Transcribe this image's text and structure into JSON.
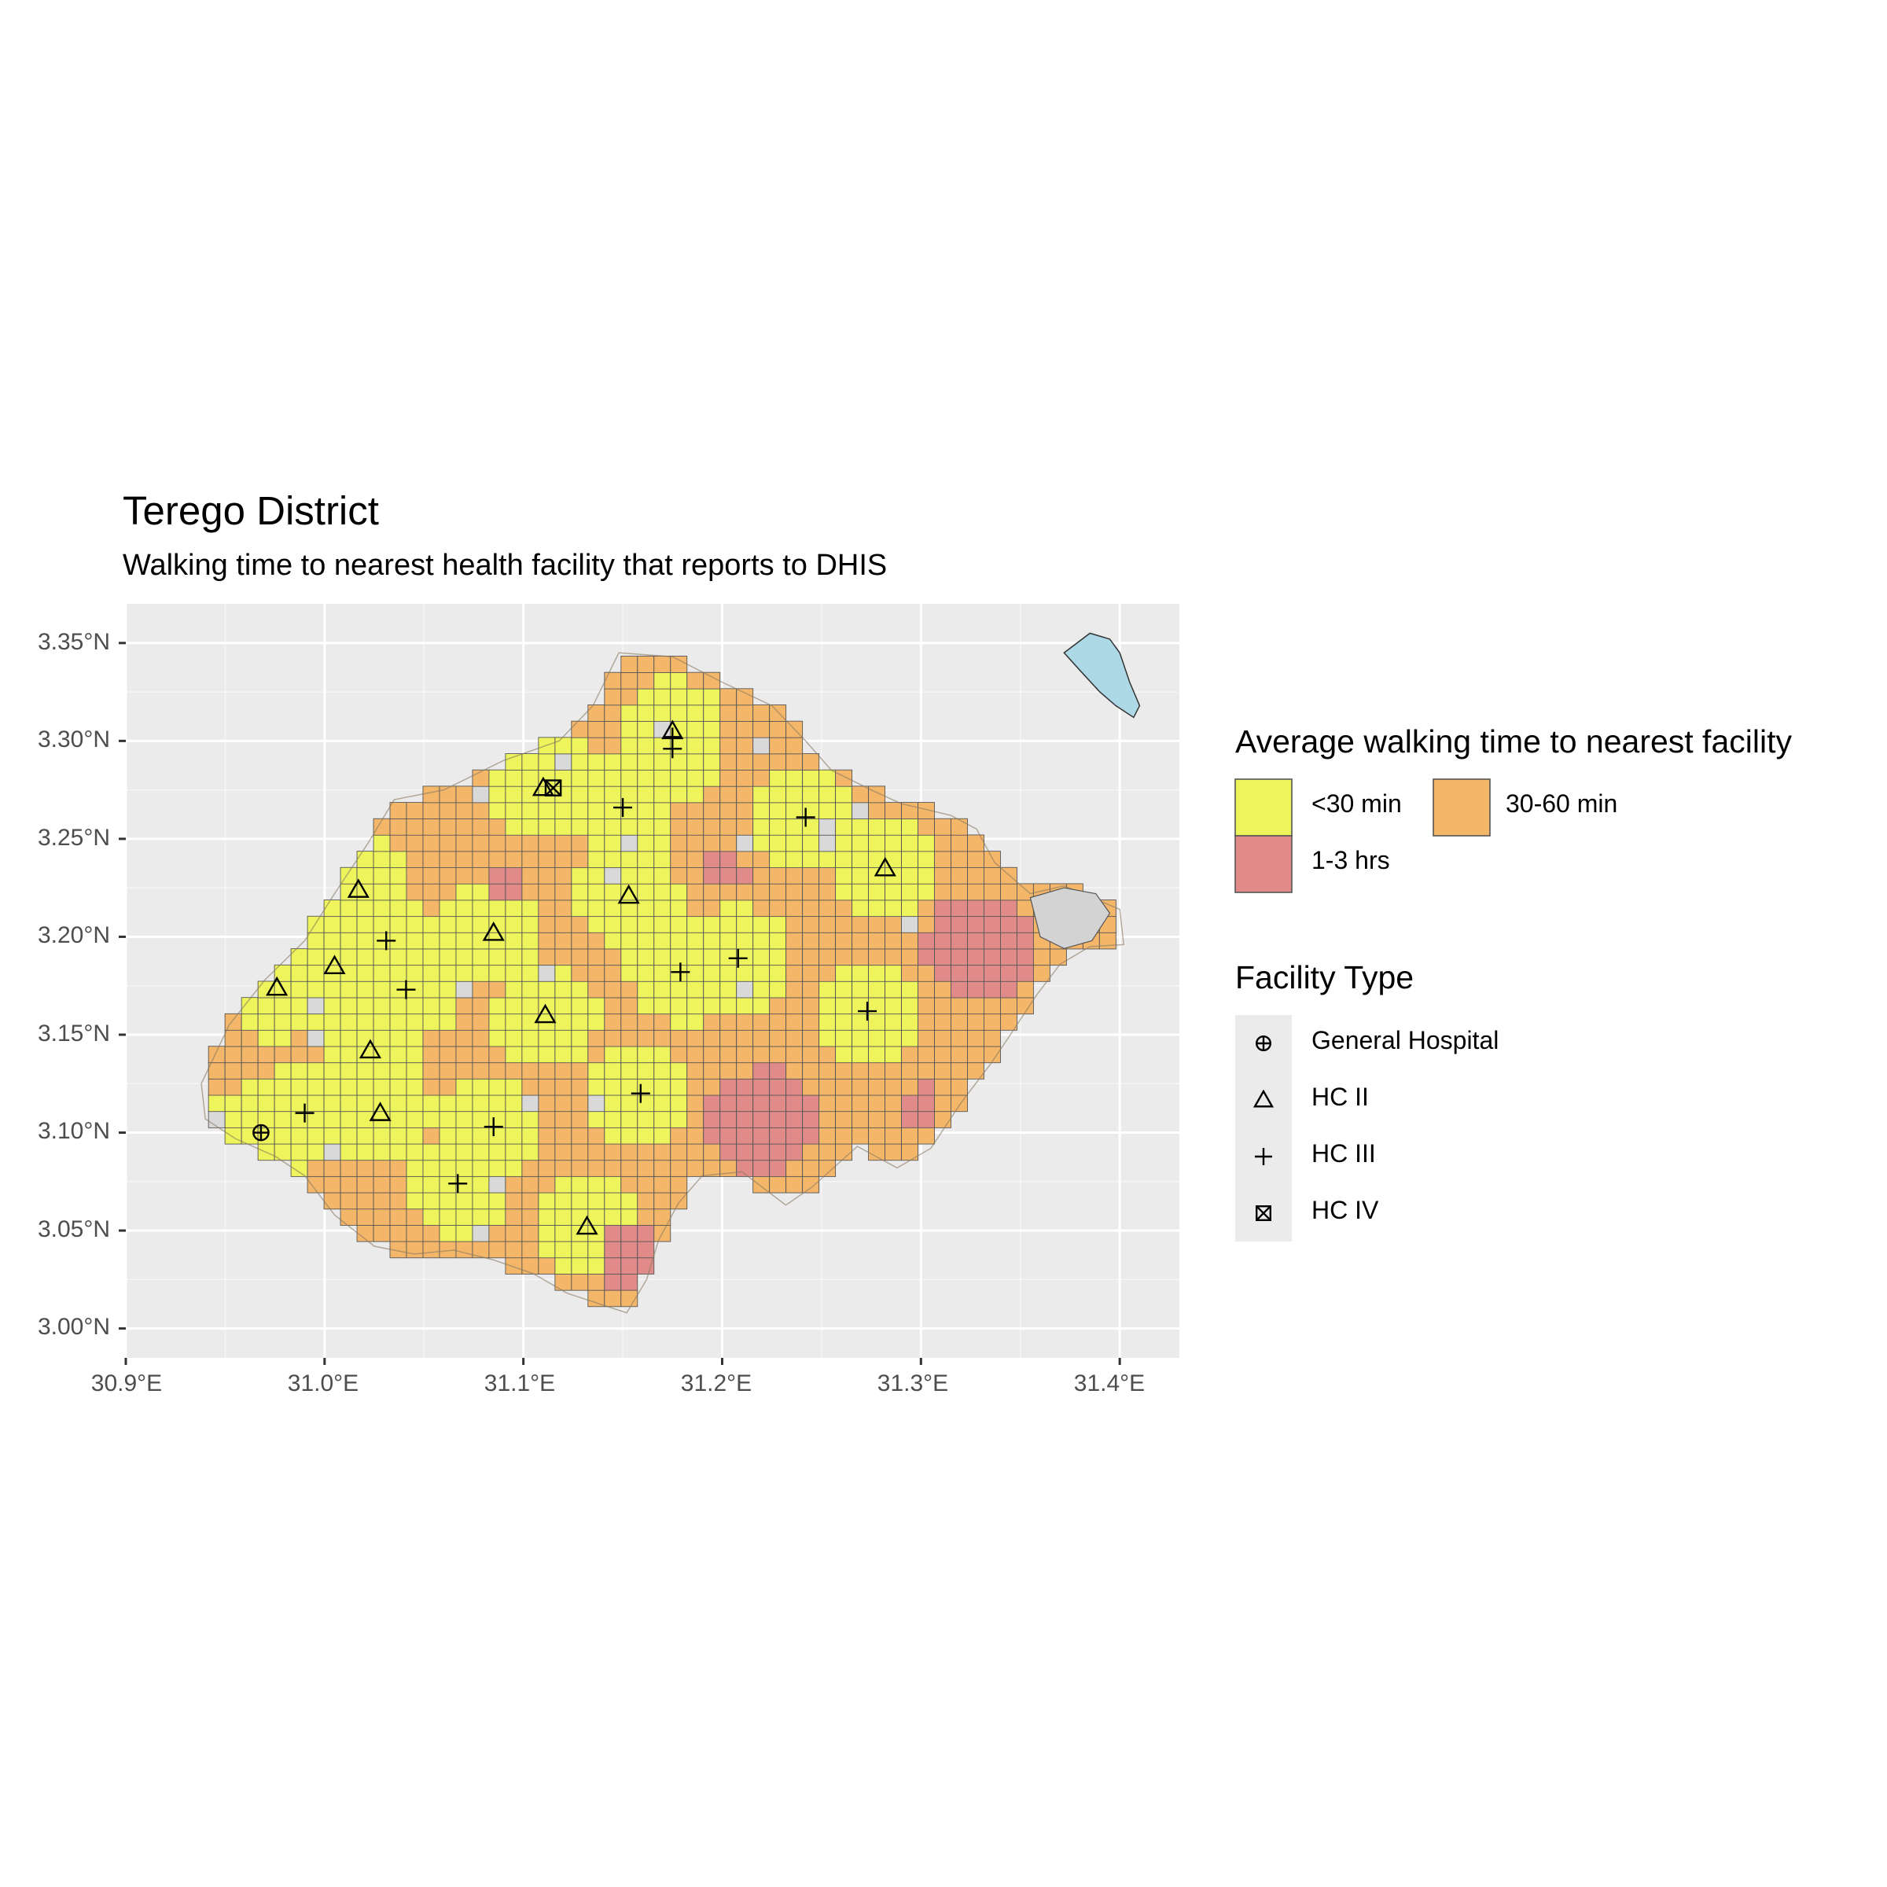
{
  "title": "Terego District",
  "subtitle": "Walking time to nearest health facility that reports to DHIS",
  "axes": {
    "y_ticks": [
      "3.35°N",
      "3.30°N",
      "3.25°N",
      "3.20°N",
      "3.15°N",
      "3.10°N",
      "3.05°N",
      "3.00°N"
    ],
    "x_ticks": [
      "30.9°E",
      "31.0°E",
      "31.1°E",
      "31.2°E",
      "31.3°E",
      "31.4°E"
    ],
    "x_range": [
      30.9,
      31.43
    ],
    "y_range": [
      2.985,
      3.37
    ]
  },
  "walking_legend": {
    "title": "Average walking time to nearest facility",
    "items": [
      {
        "label": "<30 min",
        "color": "#EEF45B"
      },
      {
        "label": "30-60 min",
        "color": "#F4B76A"
      },
      {
        "label": "1-3 hrs",
        "color": "#E08A8A"
      }
    ]
  },
  "facility_legend": {
    "title": "Facility Type",
    "items": [
      {
        "label": "General Hospital",
        "symbol": "circle-plus-icon"
      },
      {
        "label": "HC II",
        "symbol": "triangle-icon"
      },
      {
        "label": "HC III",
        "symbol": "plus-icon"
      },
      {
        "label": "HC IV",
        "symbol": "square-x-icon"
      }
    ]
  },
  "colors": {
    "panel": "#EBEBEB",
    "gridline": "#FFFFFF",
    "lake": "#ADD8E6",
    "nodata": "#D9D9D9"
  },
  "facilities": [
    {
      "type": "General Hospital",
      "lon": 30.968,
      "lat": 3.1
    },
    {
      "type": "HC II",
      "lon": 31.175,
      "lat": 3.305
    },
    {
      "type": "HC II",
      "lon": 31.11,
      "lat": 3.276
    },
    {
      "type": "HC II",
      "lon": 31.282,
      "lat": 3.235
    },
    {
      "type": "HC II",
      "lon": 31.153,
      "lat": 3.221
    },
    {
      "type": "HC II",
      "lon": 31.017,
      "lat": 3.224
    },
    {
      "type": "HC II",
      "lon": 31.085,
      "lat": 3.202
    },
    {
      "type": "HC II",
      "lon": 31.005,
      "lat": 3.185
    },
    {
      "type": "HC II",
      "lon": 30.976,
      "lat": 3.174
    },
    {
      "type": "HC II",
      "lon": 31.111,
      "lat": 3.16
    },
    {
      "type": "HC II",
      "lon": 31.023,
      "lat": 3.142
    },
    {
      "type": "HC II",
      "lon": 31.028,
      "lat": 3.11
    },
    {
      "type": "HC II",
      "lon": 31.132,
      "lat": 3.052
    },
    {
      "type": "HC III",
      "lon": 31.175,
      "lat": 3.302
    },
    {
      "type": "HC III",
      "lon": 31.175,
      "lat": 3.296
    },
    {
      "type": "HC III",
      "lon": 31.15,
      "lat": 3.266
    },
    {
      "type": "HC III",
      "lon": 31.242,
      "lat": 3.261
    },
    {
      "type": "HC III",
      "lon": 31.031,
      "lat": 3.198
    },
    {
      "type": "HC III",
      "lon": 31.208,
      "lat": 3.189
    },
    {
      "type": "HC III",
      "lon": 31.179,
      "lat": 3.182
    },
    {
      "type": "HC III",
      "lon": 31.041,
      "lat": 3.173
    },
    {
      "type": "HC III",
      "lon": 31.273,
      "lat": 3.162
    },
    {
      "type": "HC III",
      "lon": 31.159,
      "lat": 3.12
    },
    {
      "type": "HC III",
      "lon": 30.99,
      "lat": 3.11
    },
    {
      "type": "HC III",
      "lon": 31.085,
      "lat": 3.103
    },
    {
      "type": "HC III",
      "lon": 31.067,
      "lat": 3.074
    },
    {
      "type": "HC IV",
      "lon": 31.115,
      "lat": 3.276
    }
  ]
}
